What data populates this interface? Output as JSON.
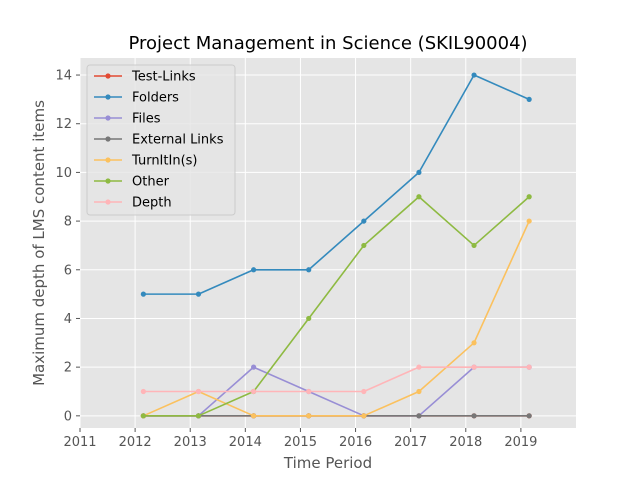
{
  "chart_data": {
    "type": "line",
    "title": "Project Management in Science (SKIL90004)",
    "xlabel": "Time Period",
    "ylabel": "Maximum depth of LMS content items",
    "x": [
      2012.15,
      2013.15,
      2014.15,
      2015.15,
      2016.15,
      2017.15,
      2018.15,
      2019.15
    ],
    "xlim": [
      2011,
      2020
    ],
    "ylim": [
      -0.5,
      14.7
    ],
    "xticks": [
      "2011",
      "2012",
      "2013",
      "2014",
      "2015",
      "2016",
      "2017",
      "2018",
      "2019"
    ],
    "yticks": [
      "0",
      "2",
      "4",
      "6",
      "8",
      "10",
      "12",
      "14"
    ],
    "grid": true,
    "legend_position": "upper-left",
    "series": [
      {
        "name": "Test-Links",
        "color": "#E24A33",
        "values": [
          0,
          0,
          0,
          0,
          0,
          0,
          0,
          0
        ]
      },
      {
        "name": "Folders",
        "color": "#348ABD",
        "values": [
          5,
          5,
          6,
          6,
          8,
          10,
          14,
          13
        ]
      },
      {
        "name": "Files",
        "color": "#988ED5",
        "values": [
          0,
          0,
          2,
          1,
          0,
          0,
          2,
          2
        ]
      },
      {
        "name": "External Links",
        "color": "#777777",
        "values": [
          0,
          0,
          0,
          0,
          0,
          0,
          0,
          0
        ]
      },
      {
        "name": "TurnItIn(s)",
        "color": "#FBC15E",
        "values": [
          0,
          1,
          0,
          0,
          0,
          1,
          3,
          8
        ]
      },
      {
        "name": "Other",
        "color": "#8EBA42",
        "values": [
          0,
          0,
          1,
          4,
          7,
          9,
          7,
          9
        ]
      },
      {
        "name": "Depth",
        "color": "#FFB5B8",
        "values": [
          1,
          1,
          1,
          1,
          1,
          2,
          2,
          2
        ]
      }
    ]
  }
}
